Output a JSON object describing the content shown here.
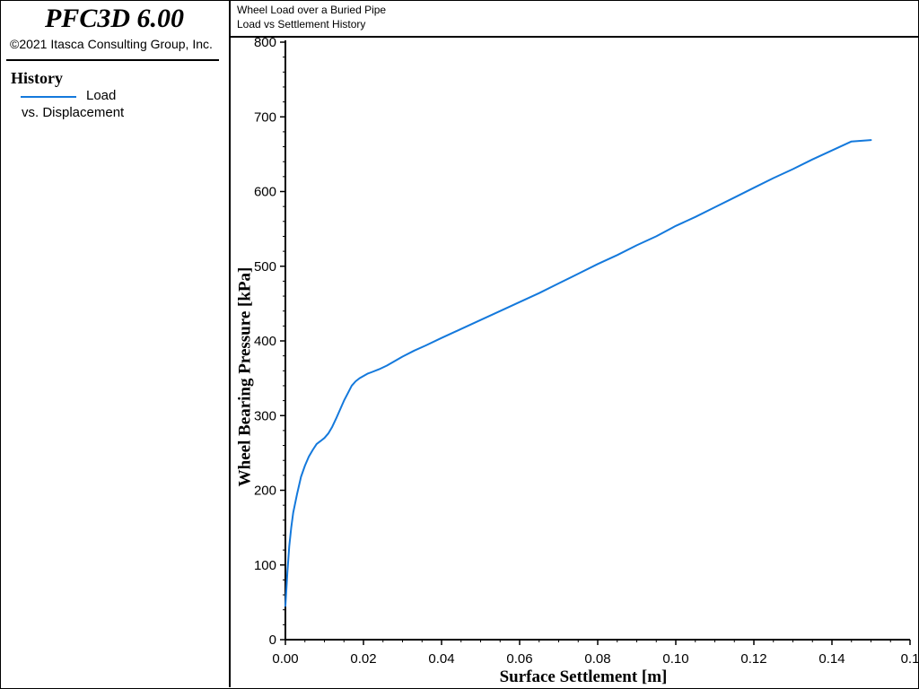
{
  "app": {
    "title": "PFC3D 6.00",
    "copyright": "©2021 Itasca Consulting Group, Inc."
  },
  "legend": {
    "heading": "History",
    "series_label": "Load",
    "series_sublabel": "vs. Displacement"
  },
  "header": {
    "line1": "Wheel Load over a Buried Pipe",
    "line2": "Load vs Settlement History"
  },
  "colors": {
    "series": "#1479dc",
    "axis": "#000000",
    "background": "#ffffff"
  },
  "chart_data": {
    "type": "line",
    "title": "Load vs Settlement History",
    "xlabel": "Surface Settlement [m]",
    "ylabel": "Wheel Bearing Pressure [kPa]",
    "xlim": [
      0,
      0.16
    ],
    "ylim": [
      0,
      800
    ],
    "x_ticks": [
      "0.00",
      "0.02",
      "0.04",
      "0.06",
      "0.08",
      "0.10",
      "0.12",
      "0.14",
      "0.1"
    ],
    "y_ticks": [
      "0",
      "100",
      "200",
      "300",
      "400",
      "500",
      "600",
      "700",
      "800"
    ],
    "grid": false,
    "legend": "left-panel",
    "series": [
      {
        "name": "Load",
        "x": [
          0.0,
          0.0005,
          0.001,
          0.0015,
          0.002,
          0.003,
          0.004,
          0.005,
          0.006,
          0.007,
          0.008,
          0.009,
          0.01,
          0.011,
          0.012,
          0.013,
          0.014,
          0.015,
          0.016,
          0.017,
          0.018,
          0.019,
          0.02,
          0.021,
          0.022,
          0.024,
          0.026,
          0.028,
          0.03,
          0.033,
          0.036,
          0.04,
          0.045,
          0.05,
          0.055,
          0.06,
          0.065,
          0.07,
          0.075,
          0.08,
          0.085,
          0.09,
          0.095,
          0.1,
          0.105,
          0.11,
          0.115,
          0.12,
          0.125,
          0.13,
          0.135,
          0.14,
          0.145,
          0.15
        ],
        "y": [
          45,
          90,
          125,
          150,
          170,
          195,
          218,
          233,
          245,
          254,
          262,
          266,
          270,
          276,
          285,
          296,
          308,
          320,
          330,
          340,
          346,
          350,
          353,
          356,
          358,
          362,
          367,
          373,
          379,
          387,
          394,
          404,
          416,
          428,
          440,
          452,
          464,
          477,
          490,
          503,
          515,
          528,
          540,
          554,
          566,
          579,
          592,
          605,
          618,
          630,
          643,
          655,
          667,
          669
        ]
      }
    ]
  }
}
